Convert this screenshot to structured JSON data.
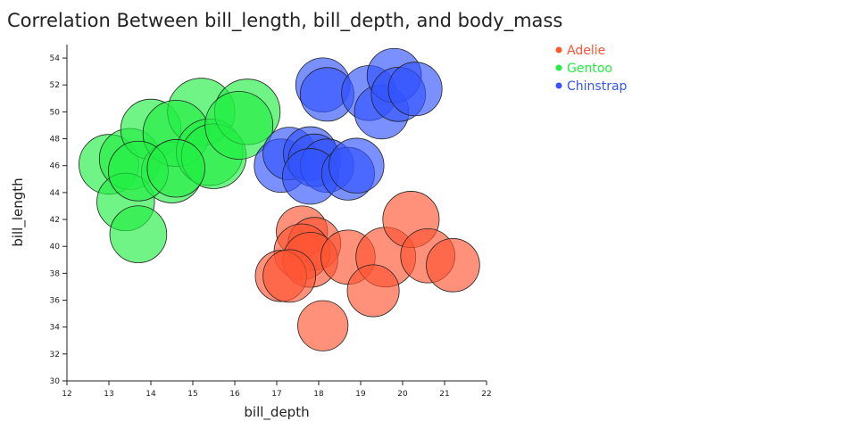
{
  "chart_data": {
    "type": "scatter",
    "title": "Correlation Between bill_length, bill_depth, and body_mass",
    "xlabel": "bill_depth",
    "ylabel": "bill_length",
    "xlim": [
      12,
      22
    ],
    "ylim": [
      30,
      55
    ],
    "xticks": [
      12,
      13,
      14,
      15,
      16,
      17,
      18,
      19,
      20,
      21,
      22
    ],
    "yticks": [
      30,
      32,
      34,
      36,
      38,
      40,
      42,
      44,
      46,
      48,
      50,
      52,
      54
    ],
    "legend_position": "top-right",
    "size_encoding": "body_mass",
    "series": [
      {
        "name": "Adelie",
        "color": "#ff5533",
        "points": [
          {
            "x": 17.6,
            "y": 41.1,
            "size": 3300
          },
          {
            "x": 17.9,
            "y": 40.2,
            "size": 3500
          },
          {
            "x": 17.6,
            "y": 39.6,
            "size": 3900
          },
          {
            "x": 17.8,
            "y": 39.0,
            "size": 3800
          },
          {
            "x": 18.7,
            "y": 39.2,
            "size": 3700
          },
          {
            "x": 19.6,
            "y": 39.2,
            "size": 4500
          },
          {
            "x": 20.2,
            "y": 42.0,
            "size": 4000
          },
          {
            "x": 20.6,
            "y": 39.3,
            "size": 3700
          },
          {
            "x": 21.2,
            "y": 38.6,
            "size": 3600
          },
          {
            "x": 19.3,
            "y": 36.7,
            "size": 3400
          },
          {
            "x": 17.1,
            "y": 37.8,
            "size": 3300
          },
          {
            "x": 17.3,
            "y": 37.8,
            "size": 3500
          },
          {
            "x": 18.1,
            "y": 34.1,
            "size": 3200
          }
        ]
      },
      {
        "name": "Gentoo",
        "color": "#22ee44",
        "points": [
          {
            "x": 13.0,
            "y": 46.1,
            "size": 4500
          },
          {
            "x": 13.5,
            "y": 46.5,
            "size": 4700
          },
          {
            "x": 13.4,
            "y": 43.3,
            "size": 4200
          },
          {
            "x": 13.7,
            "y": 40.9,
            "size": 4100
          },
          {
            "x": 14.0,
            "y": 48.7,
            "size": 4600
          },
          {
            "x": 14.5,
            "y": 45.5,
            "size": 4700
          },
          {
            "x": 15.2,
            "y": 50.0,
            "size": 5700
          },
          {
            "x": 14.6,
            "y": 48.4,
            "size": 5500
          },
          {
            "x": 15.4,
            "y": 47.0,
            "size": 5600
          },
          {
            "x": 15.5,
            "y": 46.7,
            "size": 5300
          },
          {
            "x": 16.3,
            "y": 50.0,
            "size": 5400
          },
          {
            "x": 16.1,
            "y": 49.0,
            "size": 5800
          },
          {
            "x": 13.7,
            "y": 45.6,
            "size": 4500
          },
          {
            "x": 14.6,
            "y": 45.8,
            "size": 4200
          }
        ]
      },
      {
        "name": "Chinstrap",
        "color": "#3355ff",
        "points": [
          {
            "x": 18.1,
            "y": 52.0,
            "size": 3700
          },
          {
            "x": 18.2,
            "y": 51.3,
            "size": 3650
          },
          {
            "x": 19.2,
            "y": 51.4,
            "size": 3800
          },
          {
            "x": 19.5,
            "y": 50.0,
            "size": 3700
          },
          {
            "x": 19.8,
            "y": 52.7,
            "size": 3700
          },
          {
            "x": 19.9,
            "y": 51.3,
            "size": 3700
          },
          {
            "x": 20.3,
            "y": 51.7,
            "size": 3650
          },
          {
            "x": 17.1,
            "y": 46.0,
            "size": 3600
          },
          {
            "x": 17.3,
            "y": 46.9,
            "size": 3500
          },
          {
            "x": 17.8,
            "y": 46.9,
            "size": 3650
          },
          {
            "x": 17.9,
            "y": 46.4,
            "size": 3500
          },
          {
            "x": 18.2,
            "y": 46.0,
            "size": 3600
          },
          {
            "x": 17.8,
            "y": 45.2,
            "size": 3900
          },
          {
            "x": 18.7,
            "y": 45.4,
            "size": 3525
          },
          {
            "x": 18.9,
            "y": 46.0,
            "size": 3800
          }
        ]
      }
    ]
  }
}
